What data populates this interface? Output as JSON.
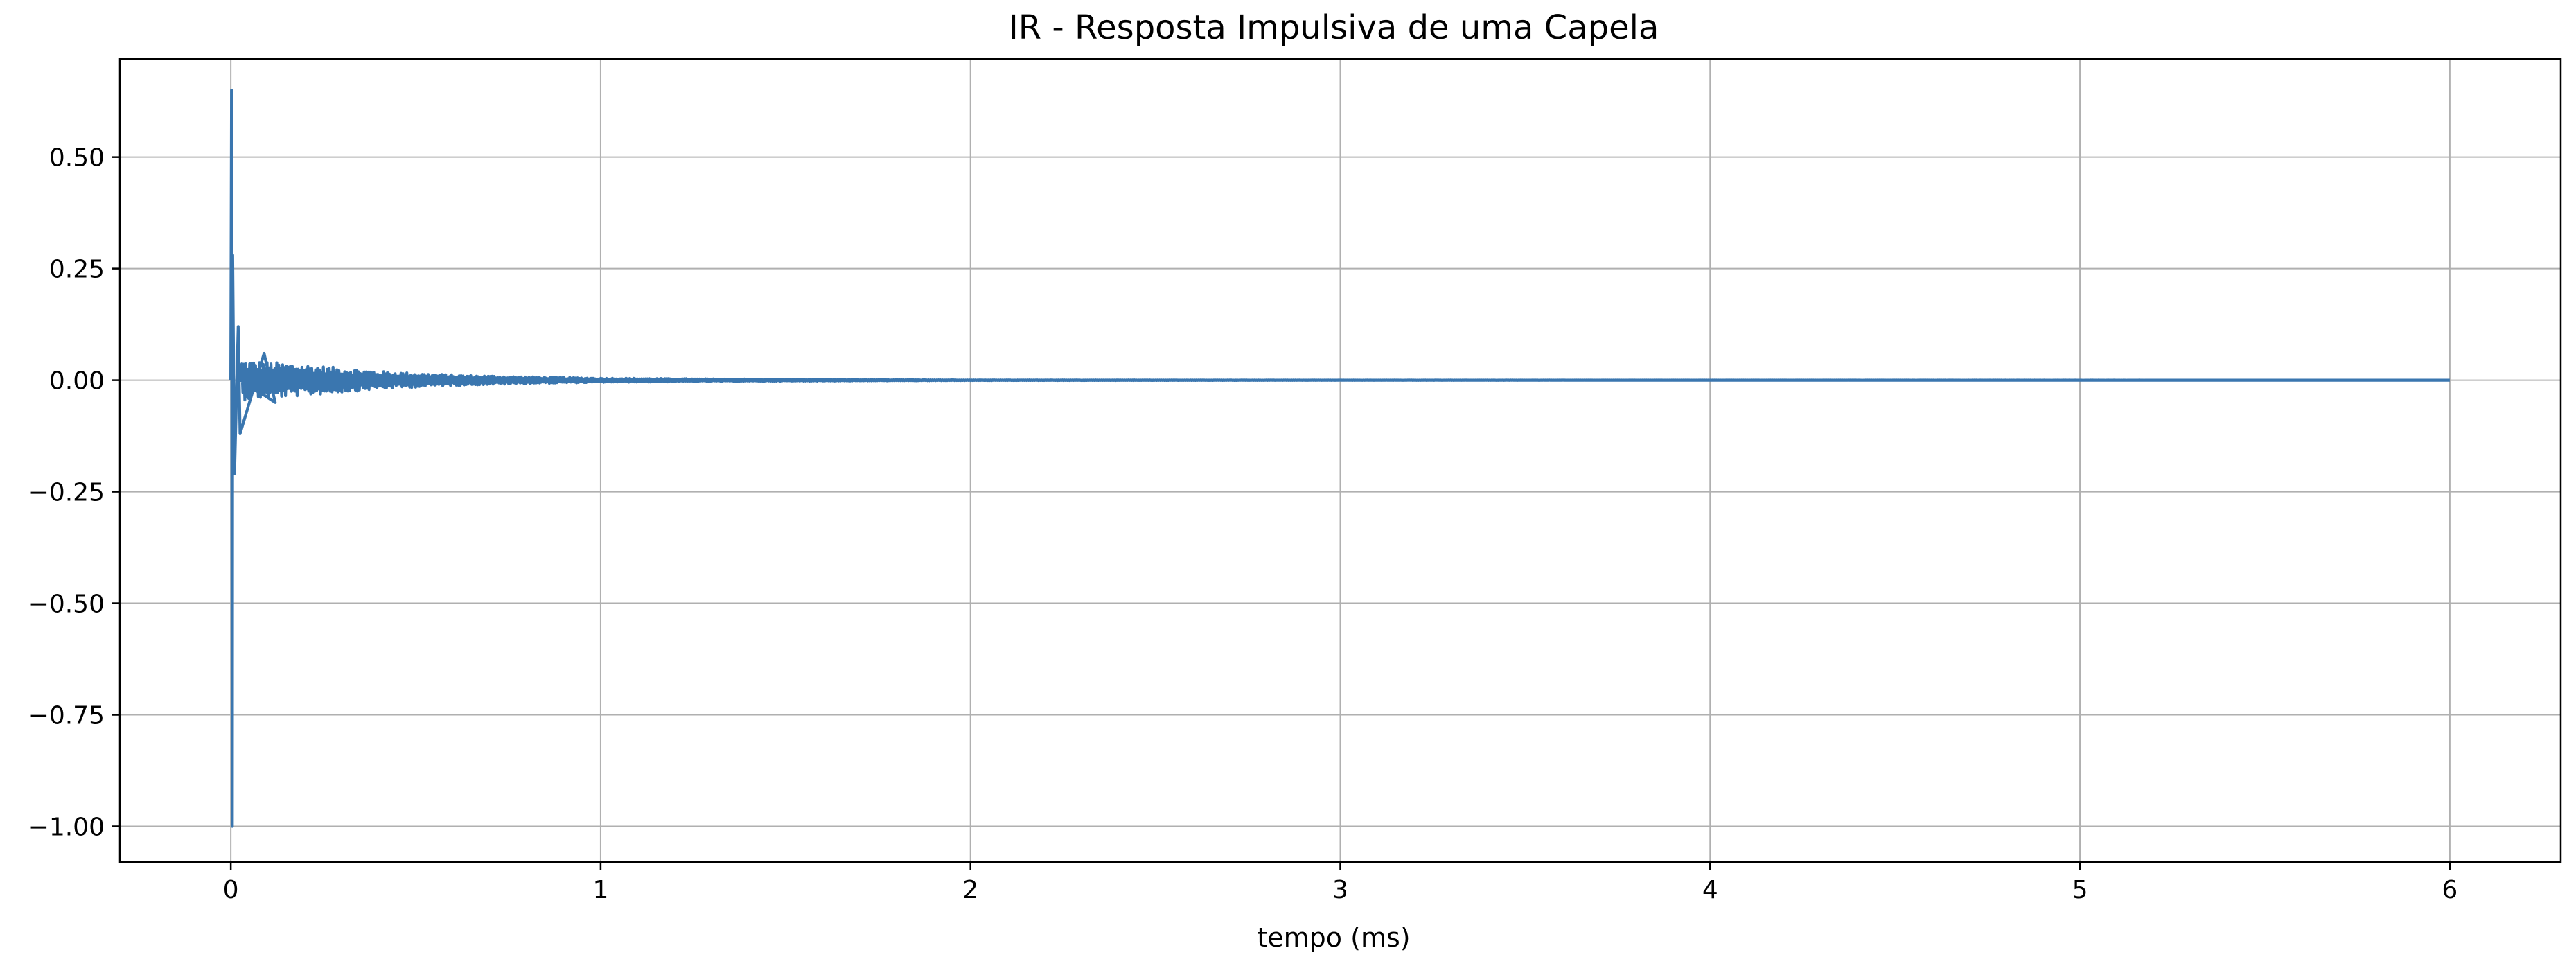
{
  "chart_data": {
    "type": "line",
    "title": "IR - Resposta Impulsiva de uma Capela",
    "xlabel": "tempo (ms)",
    "ylabel": "",
    "xlim": [
      -0.3,
      6.3
    ],
    "ylim": [
      -1.08,
      0.72
    ],
    "grid": true,
    "x_ticks": [
      0,
      1,
      2,
      3,
      4,
      5,
      6
    ],
    "x_tick_labels": [
      "0",
      "1",
      "2",
      "3",
      "4",
      "5",
      "6"
    ],
    "y_ticks": [
      0.5,
      0.25,
      0.0,
      -0.25,
      -0.5,
      -0.75,
      -1.0
    ],
    "y_tick_labels": [
      "0.50",
      "0.25",
      "0.00",
      "−0.25",
      "−0.50",
      "−0.75",
      "−1.00"
    ],
    "series": [
      {
        "color": "#3a76af",
        "x_range": [
          0,
          6
        ],
        "peak_max": 0.65,
        "peak_min": -1.0,
        "secondary_peaks": [
          {
            "x": 0.005,
            "y": 0.28
          },
          {
            "x": 0.01,
            "y": -0.21
          },
          {
            "x": 0.02,
            "y": 0.12
          },
          {
            "x": 0.025,
            "y": -0.12
          },
          {
            "x": 0.09,
            "y": 0.06
          },
          {
            "x": 0.12,
            "y": -0.05
          }
        ],
        "envelope": [
          {
            "x": 0.03,
            "y": 0.045
          },
          {
            "x": 0.2,
            "y": 0.035
          },
          {
            "x": 0.4,
            "y": 0.02
          },
          {
            "x": 0.6,
            "y": 0.012
          },
          {
            "x": 0.8,
            "y": 0.008
          },
          {
            "x": 1.0,
            "y": 0.005
          },
          {
            "x": 1.3,
            "y": 0.003
          },
          {
            "x": 1.6,
            "y": 0.002
          },
          {
            "x": 2.0,
            "y": 0.0008
          },
          {
            "x": 3.0,
            "y": 0.0003
          },
          {
            "x": 6.0,
            "y": 0.0
          }
        ]
      }
    ]
  }
}
